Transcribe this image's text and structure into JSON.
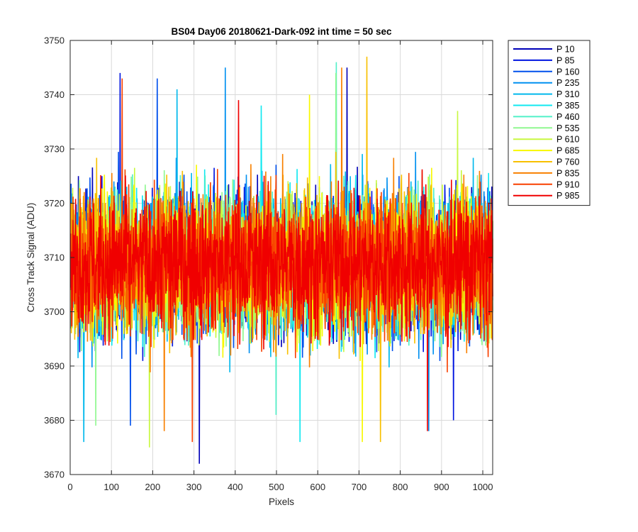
{
  "chart_data": {
    "type": "line",
    "title": "BS04 Day06 20180621-Dark-092 int time = 50 sec",
    "xlabel": "Pixels",
    "ylabel": "Cross Track Signal (ADU)",
    "xlim": [
      0,
      1024
    ],
    "ylim": [
      3670,
      3750
    ],
    "xticks": [
      0,
      100,
      200,
      300,
      400,
      500,
      600,
      700,
      800,
      900,
      1000
    ],
    "yticks": [
      3670,
      3680,
      3690,
      3700,
      3710,
      3720,
      3730,
      3740,
      3750
    ],
    "grid": true,
    "legend_placement": "outside-right",
    "series": [
      {
        "name": "P 10",
        "color": "#0000b8",
        "mean": 3709,
        "min": 3672,
        "max": 3745
      },
      {
        "name": "P 85",
        "color": "#0014e0",
        "mean": 3709,
        "min": 3680,
        "max": 3744
      },
      {
        "name": "P 160",
        "color": "#0050ec",
        "mean": 3709,
        "min": 3679,
        "max": 3743
      },
      {
        "name": "P 235",
        "color": "#0090f0",
        "mean": 3709,
        "min": 3678,
        "max": 3745
      },
      {
        "name": "P 310",
        "color": "#00b8ec",
        "mean": 3709,
        "min": 3676,
        "max": 3741
      },
      {
        "name": "P 385",
        "color": "#10e8f0",
        "mean": 3709,
        "min": 3676,
        "max": 3738
      },
      {
        "name": "P 460",
        "color": "#50f0c8",
        "mean": 3709,
        "min": 3681,
        "max": 3746
      },
      {
        "name": "P 535",
        "color": "#90f890",
        "mean": 3709,
        "min": 3679,
        "max": 3744
      },
      {
        "name": "P 610",
        "color": "#c8f840",
        "mean": 3709,
        "min": 3675,
        "max": 3737
      },
      {
        "name": "P 685",
        "color": "#f8f800",
        "mean": 3709,
        "min": 3676,
        "max": 3740
      },
      {
        "name": "P 760",
        "color": "#f8c000",
        "mean": 3709,
        "min": 3676,
        "max": 3747
      },
      {
        "name": "P 835",
        "color": "#f88000",
        "mean": 3709,
        "min": 3678,
        "max": 3745
      },
      {
        "name": "P 910",
        "color": "#f84000",
        "mean": 3709,
        "min": 3676,
        "max": 3743
      },
      {
        "name": "P 985",
        "color": "#f00000",
        "mean": 3709,
        "min": 3678,
        "max": 3739
      }
    ]
  }
}
